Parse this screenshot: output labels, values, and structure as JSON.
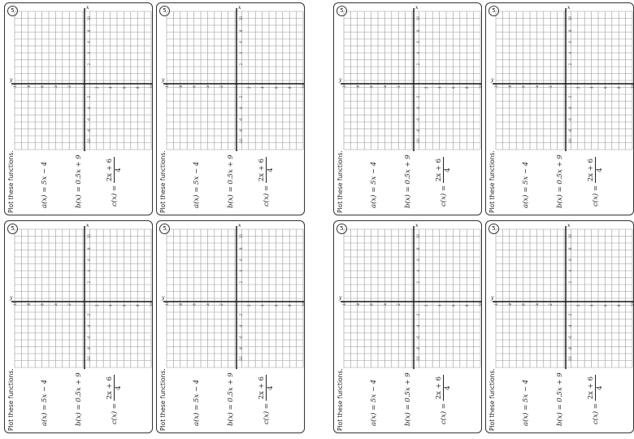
{
  "worksheet": {
    "problem_number": "5",
    "instruction": "Plot these functions.",
    "functions": [
      {
        "name": "a(x)",
        "expr": "5x − 4"
      },
      {
        "name": "b(x)",
        "expr": "0.5x + 9"
      },
      {
        "name": "c(x)",
        "numerator": "2x + 6",
        "denominator": "4"
      }
    ],
    "axes": {
      "x_label": "x",
      "y_label": "y"
    },
    "vertical_axis_ticks": [
      "10",
      "8",
      "6",
      "4",
      "2",
      "-2",
      "-4",
      "-6",
      "-8",
      "-10"
    ],
    "horizontal_axis_ticks": [
      "-10",
      "-8",
      "-6",
      "-4",
      "-2",
      "2",
      "4",
      "6",
      "8",
      "10"
    ]
  },
  "cards": [
    {
      "id": "1"
    },
    {
      "id": "2"
    },
    {
      "id": "3"
    },
    {
      "id": "4"
    },
    {
      "id": "5"
    },
    {
      "id": "6"
    },
    {
      "id": "7"
    },
    {
      "id": "8"
    }
  ]
}
